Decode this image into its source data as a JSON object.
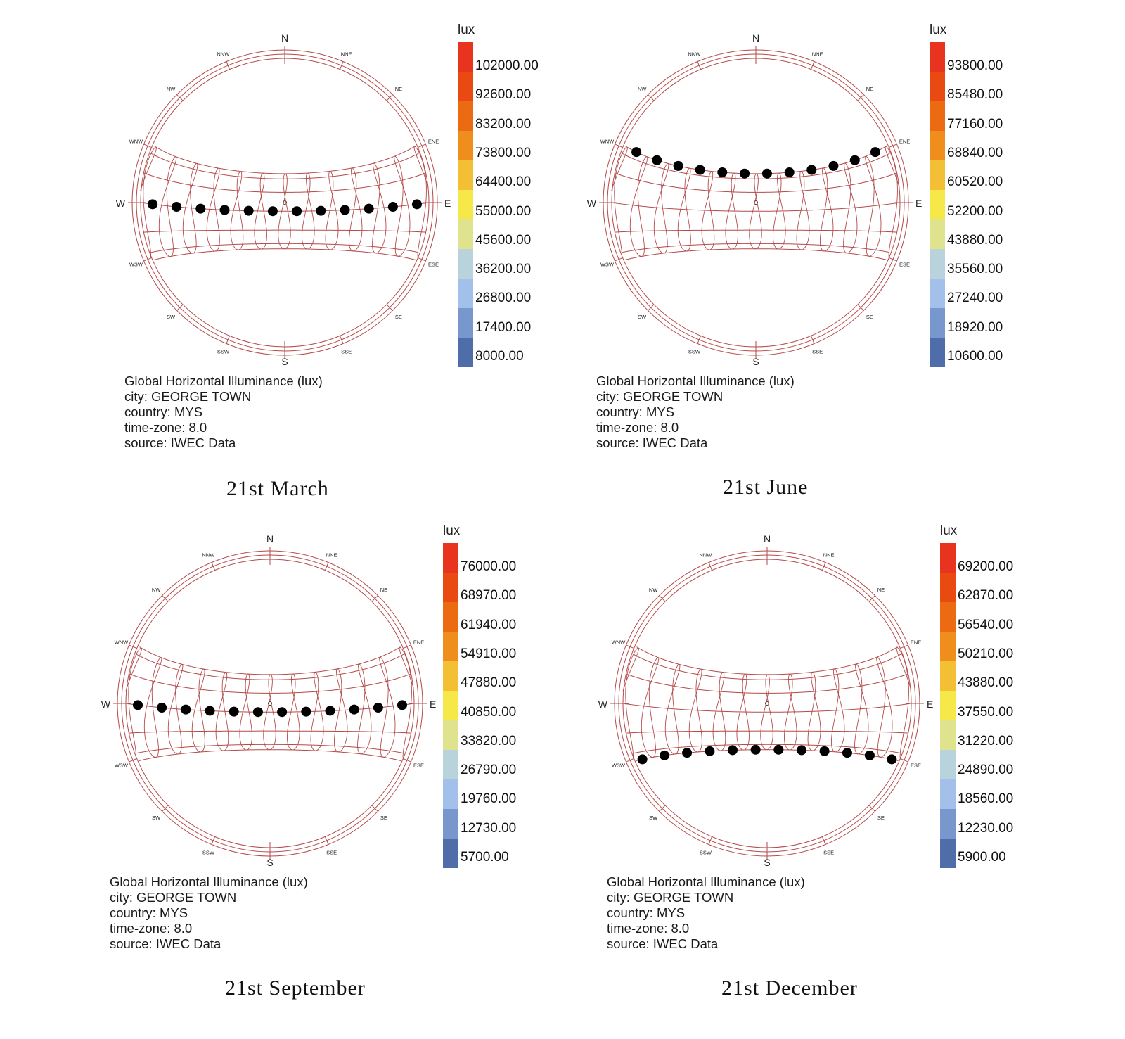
{
  "legend_colors": [
    "#e8331f",
    "#e84a12",
    "#ec6b12",
    "#ef8e1c",
    "#f3bf35",
    "#f7e84a",
    "#dfe38e",
    "#b9d3dc",
    "#a2c0ea",
    "#7897cc",
    "#4f6ea9"
  ],
  "cardinals": [
    "N",
    "S",
    "E",
    "W"
  ],
  "minor_dirs": [
    "NNE",
    "NE",
    "ENE",
    "ESE",
    "SE",
    "SSE",
    "SSW",
    "SW",
    "WSW",
    "WNW",
    "NW",
    "NNW"
  ],
  "panels": [
    {
      "id": "march",
      "caption": "21st March",
      "legend": {
        "unit": "lux",
        "values": [
          "102000.00",
          "92600.00",
          "83200.00",
          "73800.00",
          "64400.00",
          "55000.00",
          "45600.00",
          "36200.00",
          "26800.00",
          "17400.00",
          "8000.00"
        ]
      },
      "info": [
        "Global Horizontal Illuminance (lux)",
        "city: GEORGE TOWN",
        "country: MYS",
        "time-zone: 8.0",
        "source: IWEC Data"
      ],
      "sun_declination": 0
    },
    {
      "id": "june",
      "caption": "21st June",
      "legend": {
        "unit": "lux",
        "values": [
          "93800.00",
          "85480.00",
          "77160.00",
          "68840.00",
          "60520.00",
          "52200.00",
          "43880.00",
          "35560.00",
          "27240.00",
          "18920.00",
          "10600.00"
        ]
      },
      "info": [
        "Global Horizontal Illuminance (lux)",
        "city: GEORGE TOWN",
        "country: MYS",
        "time-zone: 8.0",
        "source: IWEC Data"
      ],
      "sun_declination": 23.44
    },
    {
      "id": "september",
      "caption": "21st September",
      "legend": {
        "unit": "lux",
        "values": [
          "76000.00",
          "68970.00",
          "61940.00",
          "54910.00",
          "47880.00",
          "40850.00",
          "33820.00",
          "26790.00",
          "19760.00",
          "12730.00",
          "5700.00"
        ]
      },
      "info": [
        "Global Horizontal Illuminance (lux)",
        "city: GEORGE TOWN",
        "country: MYS",
        "time-zone: 8.0",
        "source: IWEC Data"
      ],
      "sun_declination": 0
    },
    {
      "id": "december",
      "caption": "21st December",
      "legend": {
        "unit": "lux",
        "values": [
          "69200.00",
          "62870.00",
          "56540.00",
          "50210.00",
          "43880.00",
          "37550.00",
          "31220.00",
          "24890.00",
          "18560.00",
          "12230.00",
          "5900.00"
        ]
      },
      "info": [
        "Global Horizontal Illuminance (lux)",
        "city: GEORGE TOWN",
        "country: MYS",
        "time-zone: 8.0",
        "source: IWEC Data"
      ],
      "sun_declination": -23.44
    }
  ]
}
